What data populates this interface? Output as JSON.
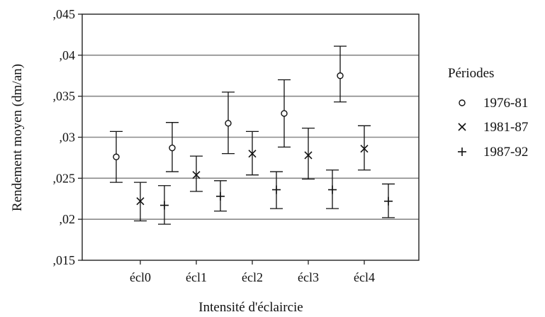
{
  "chart_data": {
    "type": "scatter",
    "title": "",
    "xlabel": "Intensité d'éclaircie",
    "ylabel": "Rendement moyen (dm/an)",
    "categories": [
      "écl0",
      "écl1",
      "écl2",
      "écl3",
      "écl4"
    ],
    "yticks": [
      ",015",
      ",02",
      ",025",
      ",03",
      ",035",
      ",04",
      ",045"
    ],
    "ylim": [
      0.015,
      0.045
    ],
    "grid": true,
    "legend": {
      "title": "Périodes",
      "position": "right"
    },
    "series": [
      {
        "name": "1976-81",
        "marker": "o",
        "values": [
          0.0276,
          0.0287,
          0.0317,
          0.0329,
          0.0375
        ],
        "lower": [
          0.0245,
          0.0258,
          0.028,
          0.0288,
          0.0343
        ],
        "upper": [
          0.0307,
          0.0318,
          0.0355,
          0.037,
          0.0411
        ]
      },
      {
        "name": "1981-87",
        "marker": "x",
        "values": [
          0.0222,
          0.0254,
          0.028,
          0.0278,
          0.0286
        ],
        "lower": [
          0.0198,
          0.0234,
          0.0254,
          0.0249,
          0.026
        ],
        "upper": [
          0.0245,
          0.0277,
          0.0307,
          0.0311,
          0.0314
        ]
      },
      {
        "name": "1987-92",
        "marker": "+",
        "values": [
          0.0217,
          0.0228,
          0.0236,
          0.0236,
          0.0222
        ],
        "lower": [
          0.0194,
          0.021,
          0.0213,
          0.0213,
          0.0202
        ],
        "upper": [
          0.0241,
          0.0247,
          0.0258,
          0.026,
          0.0243
        ]
      }
    ]
  }
}
